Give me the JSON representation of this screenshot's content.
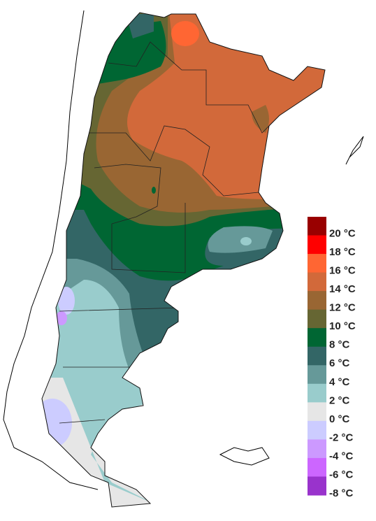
{
  "legend": {
    "items": [
      {
        "value": 20,
        "label": "20 °C"
      },
      {
        "value": 18,
        "label": "18 °C"
      },
      {
        "value": 16,
        "label": "16 °C"
      },
      {
        "value": 14,
        "label": "14 °C"
      },
      {
        "value": 12,
        "label": "12 °C"
      },
      {
        "value": 10,
        "label": "10 °C"
      },
      {
        "value": 8,
        "label": "8 °C"
      },
      {
        "value": 6,
        "label": "6 °C"
      },
      {
        "value": 4,
        "label": "4 °C"
      },
      {
        "value": 2,
        "label": "2 °C"
      },
      {
        "value": 0,
        "label": "0 °C"
      },
      {
        "value": -2,
        "label": "-2 °C"
      },
      {
        "value": -4,
        "label": "-4 °C"
      },
      {
        "value": -6,
        "label": "-6 °C"
      },
      {
        "value": -8,
        "label": "-8 °C"
      }
    ],
    "colors": [
      "#990000",
      "#ff0000",
      "#ff6633",
      "#d2693a",
      "#996633",
      "#666633",
      "#006633",
      "#336666",
      "#669999",
      "#99cccc",
      "#e6e6e6",
      "#ccccff",
      "#cc99ff",
      "#cc66ff",
      "#9933cc"
    ]
  }
}
